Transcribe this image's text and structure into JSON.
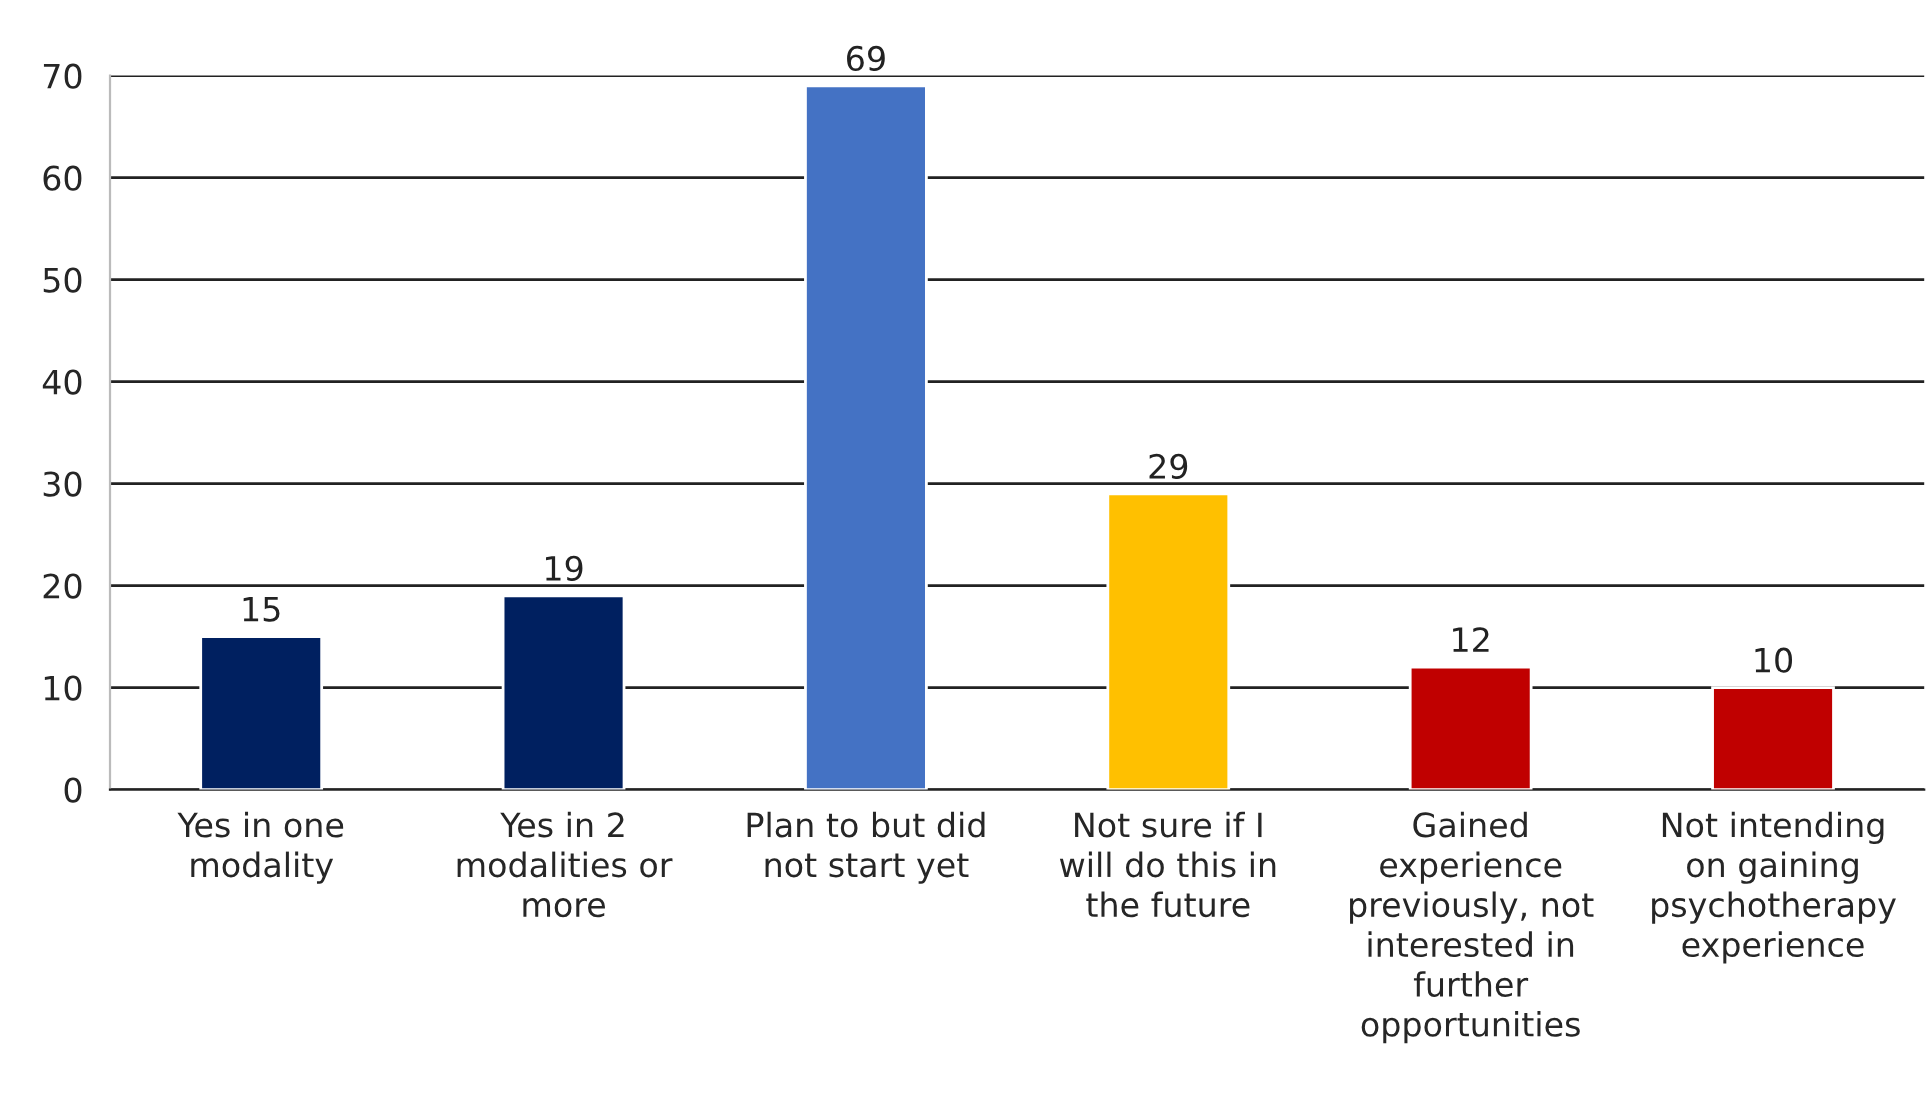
{
  "chart_data": {
    "type": "bar",
    "categories": [
      "Yes in one\nmodality",
      "Yes in 2\nmodalities or\nmore",
      "Plan to but did\nnot start yet",
      "Not sure if I\nwill do this in\nthe future",
      "Gained\nexperience\npreviously, not\ninterested in\nfurther\nopportunities",
      "Not intending\non gaining\npsychotherapy\nexperience"
    ],
    "values": [
      15,
      19,
      69,
      29,
      12,
      10
    ],
    "colors": [
      "#002060",
      "#002060",
      "#4472c4",
      "#ffc000",
      "#c00000",
      "#c00000"
    ],
    "ylim": [
      0,
      70
    ],
    "yticks": [
      0,
      10,
      20,
      30,
      40,
      50,
      60,
      70
    ],
    "grid": "y",
    "data_labels": true
  }
}
